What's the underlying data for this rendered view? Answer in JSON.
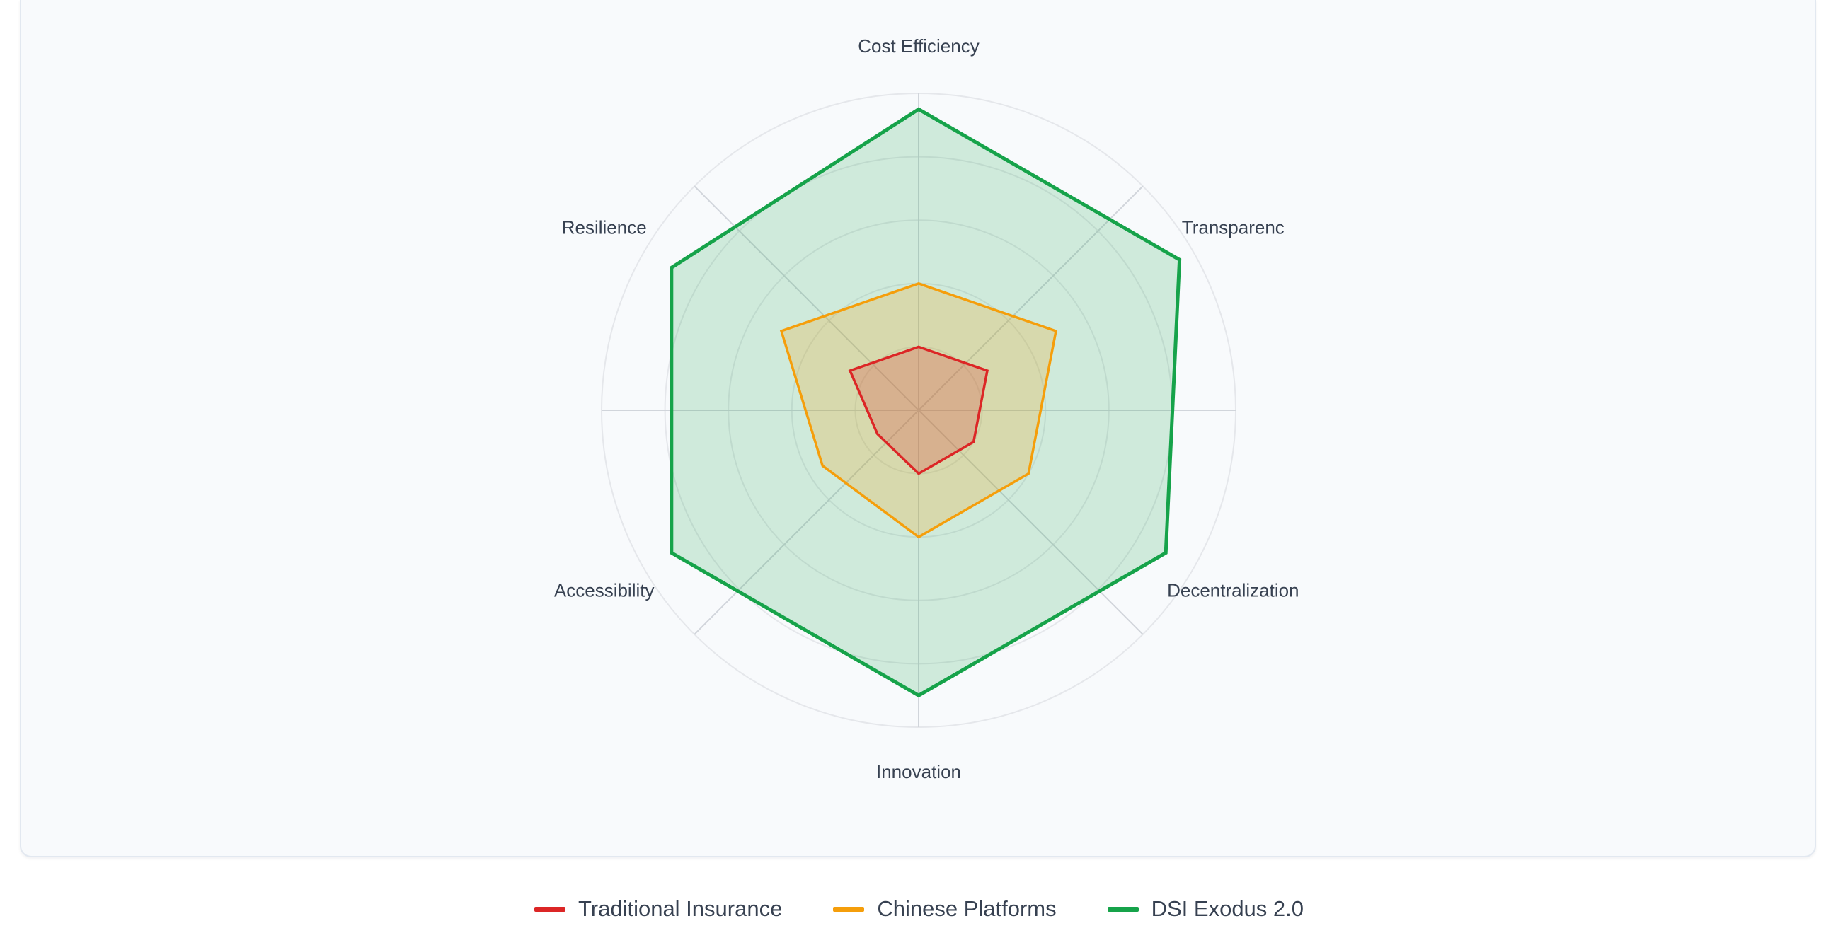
{
  "chart_data": {
    "type": "radar",
    "axes": [
      "Cost Efficiency",
      "Transparenc",
      "Decentralization",
      "Innovation",
      "Accessibility",
      "Resilience"
    ],
    "rlim": [
      0,
      100
    ],
    "grid_levels": [
      20,
      40,
      60,
      80,
      100
    ],
    "grid": true,
    "legend_position": "bottom",
    "series": [
      {
        "name": "Traditional Insurance",
        "values": [
          20,
          25,
          20,
          20,
          15,
          25
        ],
        "color": "#dc2626"
      },
      {
        "name": "Chinese Platforms",
        "values": [
          40,
          50,
          40,
          40,
          35,
          50
        ],
        "color": "#f59e0b"
      },
      {
        "name": "DSI Exodus 2.0",
        "values": [
          95,
          95,
          90,
          90,
          90,
          90
        ],
        "color": "#16a34a"
      }
    ]
  }
}
